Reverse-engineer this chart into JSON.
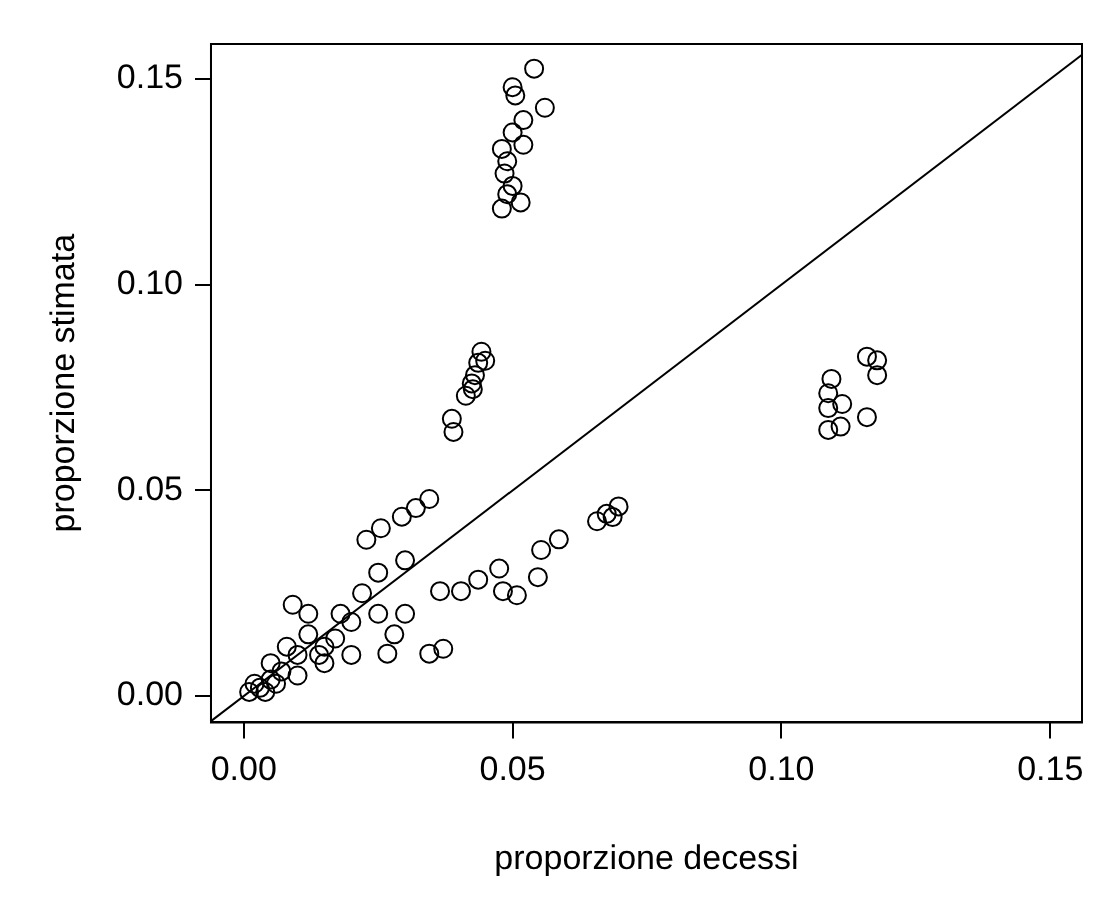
{
  "chart_data": {
    "type": "scatter",
    "xlabel": "proporzione decessi",
    "ylabel": "proporzione stimata",
    "xlim": [
      -0.0061,
      0.1559
    ],
    "ylim": [
      -0.0064,
      0.1585
    ],
    "xticks": [
      {
        "value": 0,
        "label": "0.00"
      },
      {
        "value": 0.05,
        "label": "0.05"
      },
      {
        "value": 0.1,
        "label": "0.10"
      },
      {
        "value": 0.15,
        "label": "0.15"
      }
    ],
    "yticks": [
      {
        "value": 0,
        "label": "0.00"
      },
      {
        "value": 0.05,
        "label": "0.05"
      },
      {
        "value": 0.1,
        "label": "0.10"
      },
      {
        "value": 0.15,
        "label": "0.15"
      }
    ],
    "grid": false,
    "legend": false,
    "marker": "circle",
    "series": [
      {
        "color": "#000000",
        "x": [
          0.054,
          0.05,
          0.0505,
          0.056,
          0.052,
          0.05,
          0.052,
          0.048,
          0.049,
          0.0485,
          0.05,
          0.049,
          0.048,
          0.0515,
          0.0442,
          0.0436,
          0.043,
          0.0424,
          0.0413,
          0.0387,
          0.039,
          0.0449,
          0.0426,
          0.1159,
          0.1178,
          0.1178,
          0.1093,
          0.1087,
          0.1087,
          0.1113,
          0.1159,
          0.1087,
          0.111,
          0.0697,
          0.0675,
          0.0657,
          0.0686,
          0.0586,
          0.0553,
          0.0547,
          0.0475,
          0.0436,
          0.0404,
          0.0508,
          0.0482,
          0.0365,
          0.0371,
          0.0345,
          0.0267,
          0.0091,
          0.0345,
          0.032,
          0.0294,
          0.0255,
          0.0228,
          0.001,
          0.002,
          0.003,
          0.005,
          0.007,
          0.01,
          0.012,
          0.015,
          0.018,
          0.02,
          0.022,
          0.025,
          0.02,
          0.015,
          0.01,
          0.005,
          0.008,
          0.012,
          0.03,
          0.028,
          0.03,
          0.025,
          0.004,
          0.006,
          0.014,
          0.017
        ],
        "values": [
          0.1525,
          0.148,
          0.146,
          0.143,
          0.14,
          0.137,
          0.134,
          0.133,
          0.13,
          0.127,
          0.124,
          0.122,
          0.1185,
          0.12,
          0.0837,
          0.081,
          0.078,
          0.076,
          0.073,
          0.0674,
          0.0642,
          0.0815,
          0.0746,
          0.0825,
          0.0816,
          0.078,
          0.0771,
          0.0736,
          0.07,
          0.071,
          0.0678,
          0.0647,
          0.0655,
          0.0461,
          0.0443,
          0.0425,
          0.0435,
          0.0381,
          0.0355,
          0.0289,
          0.031,
          0.0283,
          0.0255,
          0.0245,
          0.0255,
          0.0255,
          0.0115,
          0.0103,
          0.0103,
          0.0222,
          0.0479,
          0.0457,
          0.0436,
          0.0408,
          0.038,
          0.001,
          0.003,
          0.002,
          0.004,
          0.006,
          0.01,
          0.015,
          0.012,
          0.02,
          0.018,
          0.025,
          0.03,
          0.01,
          0.008,
          0.005,
          0.008,
          0.012,
          0.02,
          0.02,
          0.015,
          0.033,
          0.02,
          0.001,
          0.003,
          0.01,
          0.014
        ]
      },
      {
        "color": "#000000",
        "type": "line",
        "marker": "none",
        "line_style": "solid",
        "x": [
          -0.0061,
          0.1559
        ],
        "values": [
          -0.0061,
          0.1559
        ]
      }
    ]
  }
}
